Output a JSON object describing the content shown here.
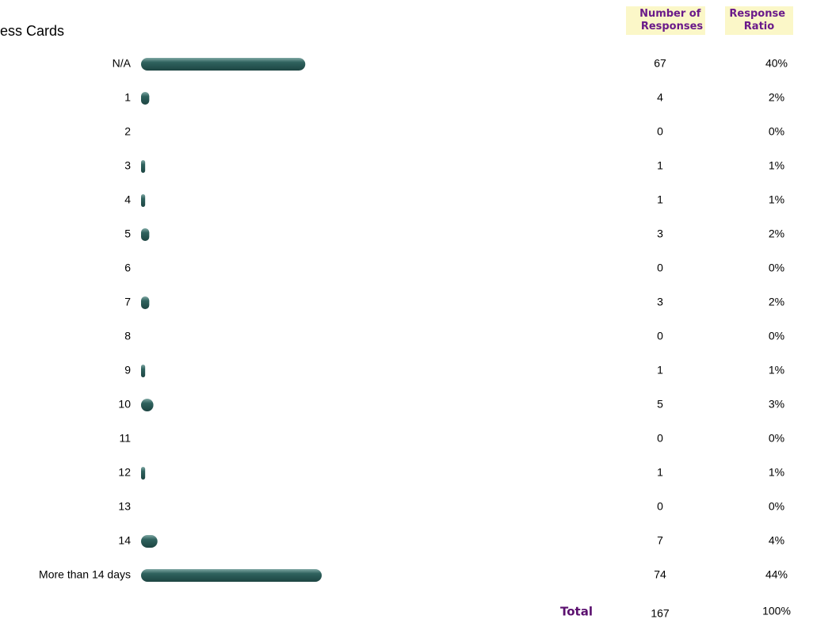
{
  "header": {
    "title": "ess Cards"
  },
  "columns": {
    "count": "Number of Responses",
    "ratio": "Response Ratio"
  },
  "table": {
    "rows": [
      {
        "label": "N/A",
        "count": 67,
        "ratio": 40,
        "ratio_label": "40%"
      },
      {
        "label": "1",
        "count": 4,
        "ratio": 2,
        "ratio_label": "2%"
      },
      {
        "label": "2",
        "count": 0,
        "ratio": 0,
        "ratio_label": "0%"
      },
      {
        "label": "3",
        "count": 1,
        "ratio": 1,
        "ratio_label": "1%"
      },
      {
        "label": "4",
        "count": 1,
        "ratio": 1,
        "ratio_label": "1%"
      },
      {
        "label": "5",
        "count": 3,
        "ratio": 2,
        "ratio_label": "2%"
      },
      {
        "label": "6",
        "count": 0,
        "ratio": 0,
        "ratio_label": "0%"
      },
      {
        "label": "7",
        "count": 3,
        "ratio": 2,
        "ratio_label": "2%"
      },
      {
        "label": "8",
        "count": 0,
        "ratio": 0,
        "ratio_label": "0%"
      },
      {
        "label": "9",
        "count": 1,
        "ratio": 1,
        "ratio_label": "1%"
      },
      {
        "label": "10",
        "count": 5,
        "ratio": 3,
        "ratio_label": "3%"
      },
      {
        "label": "11",
        "count": 0,
        "ratio": 0,
        "ratio_label": "0%"
      },
      {
        "label": "12",
        "count": 1,
        "ratio": 1,
        "ratio_label": "1%"
      },
      {
        "label": "13",
        "count": 0,
        "ratio": 0,
        "ratio_label": "0%"
      },
      {
        "label": "14",
        "count": 7,
        "ratio": 4,
        "ratio_label": "4%"
      },
      {
        "label": "More than 14 days",
        "count": 74,
        "ratio": 44,
        "ratio_label": "44%"
      }
    ],
    "total": {
      "label": "Total",
      "count": 167,
      "ratio_label": "100%"
    }
  }
}
